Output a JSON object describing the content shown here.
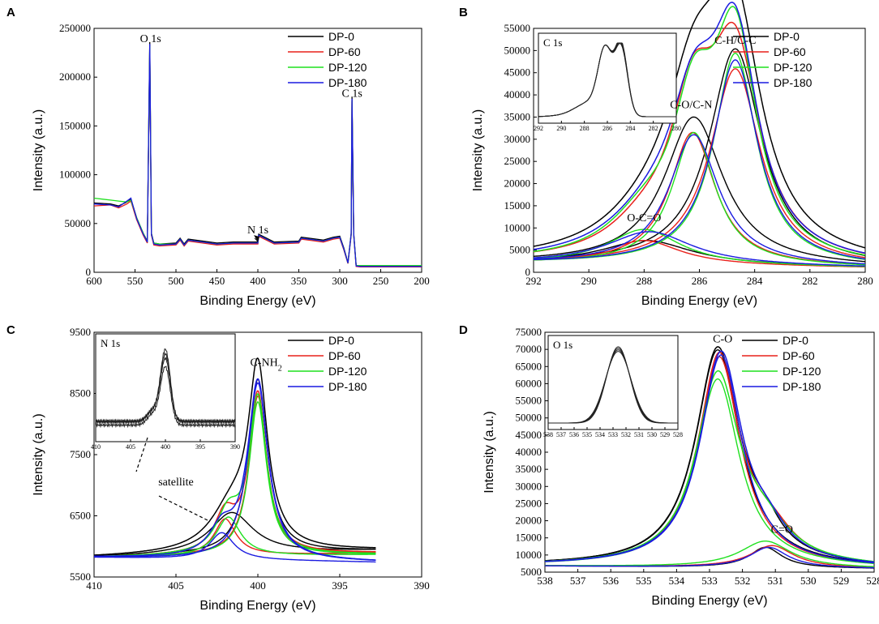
{
  "colors": {
    "DP-0": "#000000",
    "DP-60": "#e8201a",
    "DP-120": "#1fe01f",
    "DP-180": "#1a1ae0"
  },
  "chart_data": [
    {
      "panel": "A",
      "type": "line",
      "title": "",
      "xlabel": "Binding Energy (eV)",
      "ylabel": "Intensity (a.u.)",
      "xlim": [
        600,
        200
      ],
      "ylim": [
        0,
        250000
      ],
      "xticks": [
        "600",
        "550",
        "500",
        "450",
        "400",
        "350",
        "300",
        "250",
        "200"
      ],
      "yticks": [
        "0",
        "50000",
        "100000",
        "150000",
        "200000",
        "250000"
      ],
      "legend": [
        "DP-0",
        "DP-60",
        "DP-120",
        "DP-180"
      ],
      "legend_position": "top-right",
      "annotations": [
        {
          "text": "O 1s",
          "x": 531,
          "y": 236000
        },
        {
          "text": "N 1s",
          "x": 400,
          "y": 40000,
          "arrow": true
        },
        {
          "text": "C 1s",
          "x": 285,
          "y": 180000
        }
      ],
      "series": [
        {
          "name": "DP-0",
          "x": [
            600,
            580,
            570,
            560,
            555,
            548,
            540,
            535,
            532,
            530,
            527,
            520,
            500,
            495,
            490,
            485,
            450,
            430,
            400,
            399,
            380,
            350,
            347,
            320,
            308,
            300,
            295,
            290,
            286,
            285,
            283,
            280,
            275,
            250,
            200
          ],
          "y": [
            71000,
            70000,
            68000,
            72000,
            75000,
            56000,
            40000,
            32000,
            236000,
            40000,
            30000,
            29000,
            30000,
            35000,
            29000,
            34000,
            30000,
            31000,
            31000,
            39000,
            31000,
            32000,
            36000,
            33000,
            36000,
            37000,
            25000,
            10000,
            40000,
            180000,
            40000,
            7000,
            6000,
            6000,
            6000
          ]
        },
        {
          "name": "DP-60",
          "x": [
            600,
            580,
            570,
            560,
            555,
            548,
            540,
            535,
            532,
            530,
            527,
            520,
            500,
            495,
            490,
            485,
            450,
            430,
            400,
            399,
            380,
            350,
            347,
            320,
            308,
            300,
            295,
            290,
            286,
            285,
            283,
            280,
            275,
            250,
            200
          ],
          "y": [
            68000,
            69000,
            66000,
            70000,
            73000,
            54000,
            38000,
            30000,
            228000,
            38000,
            28000,
            27000,
            28000,
            33000,
            27000,
            32000,
            28000,
            29000,
            29000,
            37000,
            29000,
            30000,
            34000,
            31000,
            34000,
            35000,
            23000,
            9000,
            38000,
            175000,
            38000,
            6000,
            5500,
            5500,
            5500
          ]
        },
        {
          "name": "DP-120",
          "x": [
            600,
            580,
            570,
            560,
            555,
            548,
            540,
            535,
            532,
            530,
            527,
            520,
            500,
            495,
            490,
            485,
            450,
            430,
            400,
            399,
            380,
            350,
            347,
            320,
            308,
            300,
            295,
            290,
            286,
            285,
            283,
            280,
            275,
            250,
            200
          ],
          "y": [
            76000,
            74000,
            73000,
            72000,
            74000,
            56000,
            40000,
            31000,
            232000,
            39000,
            30000,
            29000,
            29000,
            34000,
            28000,
            33000,
            29000,
            30000,
            30000,
            38000,
            30000,
            31000,
            35000,
            32000,
            35000,
            36000,
            24000,
            9500,
            39000,
            176000,
            39000,
            7000,
            7000,
            7000,
            7000
          ]
        },
        {
          "name": "DP-180",
          "x": [
            600,
            580,
            570,
            560,
            555,
            548,
            540,
            535,
            532,
            530,
            527,
            520,
            500,
            495,
            490,
            485,
            450,
            430,
            400,
            399,
            380,
            350,
            347,
            320,
            308,
            300,
            295,
            290,
            286,
            285,
            283,
            280,
            275,
            250,
            200
          ],
          "y": [
            70000,
            69000,
            67000,
            73000,
            76000,
            55000,
            39000,
            31000,
            234000,
            39000,
            29000,
            28000,
            29000,
            34000,
            28000,
            33000,
            29000,
            30000,
            30000,
            38000,
            30000,
            31000,
            35000,
            32000,
            35000,
            36000,
            24000,
            9500,
            39000,
            178000,
            39000,
            6500,
            6000,
            6000,
            6000
          ]
        }
      ]
    },
    {
      "panel": "B",
      "type": "line",
      "title": "",
      "xlabel": "Binding Energy (eV)",
      "ylabel": "Intensity (a.u.)",
      "xlim": [
        292,
        280
      ],
      "ylim": [
        0,
        55000
      ],
      "xticks": [
        "292",
        "290",
        "288",
        "286",
        "284",
        "282",
        "280"
      ],
      "yticks": [
        "0",
        "5000",
        "10000",
        "15000",
        "20000",
        "25000",
        "30000",
        "35000",
        "40000",
        "45000",
        "50000",
        "55000"
      ],
      "legend": [
        "DP-0",
        "DP-60",
        "DP-120",
        "DP-180"
      ],
      "legend_position": "top-right",
      "annotations": [
        {
          "text": "C-H/C-C",
          "x": 284.7,
          "y": 51500
        },
        {
          "text": "C-O/C-N",
          "x": 286.3,
          "y": 37000
        },
        {
          "text": "O-C=O",
          "x": 288.0,
          "y": 11500
        }
      ],
      "inset": {
        "title": "C 1s",
        "xlim": [
          292,
          280
        ],
        "xticks": [
          "292",
          "290",
          "288",
          "286",
          "284",
          "282",
          "280"
        ],
        "position": "top-left"
      },
      "fits": [
        {
          "name": "DP-0",
          "baseline": [
            2000,
            1000
          ],
          "peaks": [
            {
              "center": 284.7,
              "height": 49000,
              "width": 1.15
            },
            {
              "center": 286.2,
              "height": 33500,
              "width": 1.3
            },
            {
              "center": 287.9,
              "height": 5500,
              "width": 2.0
            }
          ]
        },
        {
          "name": "DP-60",
          "baseline": [
            2000,
            1000
          ],
          "peaks": [
            {
              "center": 284.7,
              "height": 44500,
              "width": 1.1
            },
            {
              "center": 286.25,
              "height": 30000,
              "width": 1.0
            },
            {
              "center": 288.0,
              "height": 5500,
              "width": 1.6
            }
          ]
        },
        {
          "name": "DP-120",
          "baseline": [
            2000,
            1000
          ],
          "peaks": [
            {
              "center": 284.7,
              "height": 48000,
              "width": 0.95
            },
            {
              "center": 286.2,
              "height": 30000,
              "width": 0.95
            },
            {
              "center": 288.0,
              "height": 8000,
              "width": 1.6
            }
          ]
        },
        {
          "name": "DP-180",
          "baseline": [
            2000,
            1000
          ],
          "peaks": [
            {
              "center": 284.7,
              "height": 46500,
              "width": 1.0
            },
            {
              "center": 286.2,
              "height": 29500,
              "width": 1.1
            },
            {
              "center": 287.8,
              "height": 7500,
              "width": 1.9
            }
          ]
        }
      ]
    },
    {
      "panel": "C",
      "type": "line",
      "title": "",
      "xlabel": "Binding Energy (eV)",
      "ylabel": "Intensity (a.u.)",
      "xlim": [
        410,
        390
      ],
      "ylim": [
        5500,
        9500
      ],
      "xticks": [
        "410",
        "405",
        "400",
        "395",
        "390"
      ],
      "yticks": [
        "5500",
        "6500",
        "7500",
        "8500",
        "9500"
      ],
      "legend": [
        "DP-0",
        "DP-60",
        "DP-120",
        "DP-180"
      ],
      "legend_position": "top-right",
      "annotations": [
        {
          "text": "C-NH",
          "subscript": "2",
          "x": 399.5,
          "y": 8950
        },
        {
          "text": "satellite",
          "x": 405,
          "y": 7000
        }
      ],
      "inset": {
        "title": "N 1s",
        "xlim": [
          410,
          390
        ],
        "xticks": [
          "410",
          "405",
          "400",
          "395",
          "390"
        ],
        "position": "top-left"
      },
      "fits": [
        {
          "name": "DP-0",
          "baseline": [
            5820,
            5950
          ],
          "xmax": 392.8,
          "peaks": [
            {
              "center": 400.0,
              "height": 2850,
              "width": 0.7
            },
            {
              "center": 401.6,
              "height": 680,
              "width": 1.6
            }
          ]
        },
        {
          "name": "DP-60",
          "baseline": [
            5820,
            5900
          ],
          "xmax": 392.8,
          "peaks": [
            {
              "center": 400.0,
              "height": 2600,
              "width": 0.65
            },
            {
              "center": 402.0,
              "height": 600,
              "width": 0.8
            }
          ]
        },
        {
          "name": "DP-120",
          "baseline": [
            5820,
            5870
          ],
          "xmax": 392.8,
          "peaks": [
            {
              "center": 400.0,
              "height": 2520,
              "width": 0.65
            },
            {
              "center": 401.8,
              "height": 640,
              "width": 0.9
            }
          ]
        },
        {
          "name": "DP-180",
          "baseline": [
            5820,
            5730
          ],
          "xmax": 392.8,
          "peaks": [
            {
              "center": 400.0,
              "height": 2900,
              "width": 0.75
            },
            {
              "center": 402.2,
              "height": 440,
              "width": 0.9
            }
          ]
        }
      ]
    },
    {
      "panel": "D",
      "type": "line",
      "title": "",
      "xlabel": "Binding Energy (eV)",
      "ylabel": "Intensity (a.u.)",
      "xlim": [
        538,
        528
      ],
      "ylim": [
        5000,
        75000
      ],
      "xticks": [
        "538",
        "537",
        "536",
        "535",
        "534",
        "533",
        "532",
        "531",
        "530",
        "529",
        "528"
      ],
      "yticks": [
        "5000",
        "10000",
        "15000",
        "20000",
        "25000",
        "30000",
        "35000",
        "40000",
        "45000",
        "50000",
        "55000",
        "60000",
        "65000",
        "70000",
        "75000"
      ],
      "legend": [
        "DP-0",
        "DP-60",
        "DP-120",
        "DP-180"
      ],
      "legend_position": "top-right",
      "annotations": [
        {
          "text": "C-O",
          "x": 532.6,
          "y": 72000
        },
        {
          "text": "C=O",
          "x": 530.8,
          "y": 16500
        }
      ],
      "inset": {
        "title": "O 1s",
        "xlim": [
          538,
          528
        ],
        "xticks": [
          "538",
          "537",
          "536",
          "535",
          "534",
          "533",
          "532",
          "531",
          "530",
          "529",
          "528"
        ],
        "position": "top-left"
      },
      "fits": [
        {
          "name": "DP-0",
          "baseline": [
            6800,
            6000
          ],
          "peaks": [
            {
              "center": 532.75,
              "height": 63500,
              "width": 0.82
            },
            {
              "center": 531.3,
              "height": 6000,
              "width": 0.6
            }
          ]
        },
        {
          "name": "DP-60",
          "baseline": [
            6800,
            6000
          ],
          "peaks": [
            {
              "center": 532.7,
              "height": 61500,
              "width": 0.78
            },
            {
              "center": 531.1,
              "height": 6500,
              "width": 0.8
            }
          ]
        },
        {
          "name": "DP-120",
          "baseline": [
            6800,
            6000
          ],
          "peaks": [
            {
              "center": 532.75,
              "height": 55000,
              "width": 0.8
            },
            {
              "center": 531.3,
              "height": 7800,
              "width": 0.95
            }
          ]
        },
        {
          "name": "DP-180",
          "baseline": [
            6800,
            6000
          ],
          "peaks": [
            {
              "center": 532.65,
              "height": 62000,
              "width": 0.78
            },
            {
              "center": 531.2,
              "height": 6000,
              "width": 0.7
            }
          ]
        }
      ]
    }
  ]
}
